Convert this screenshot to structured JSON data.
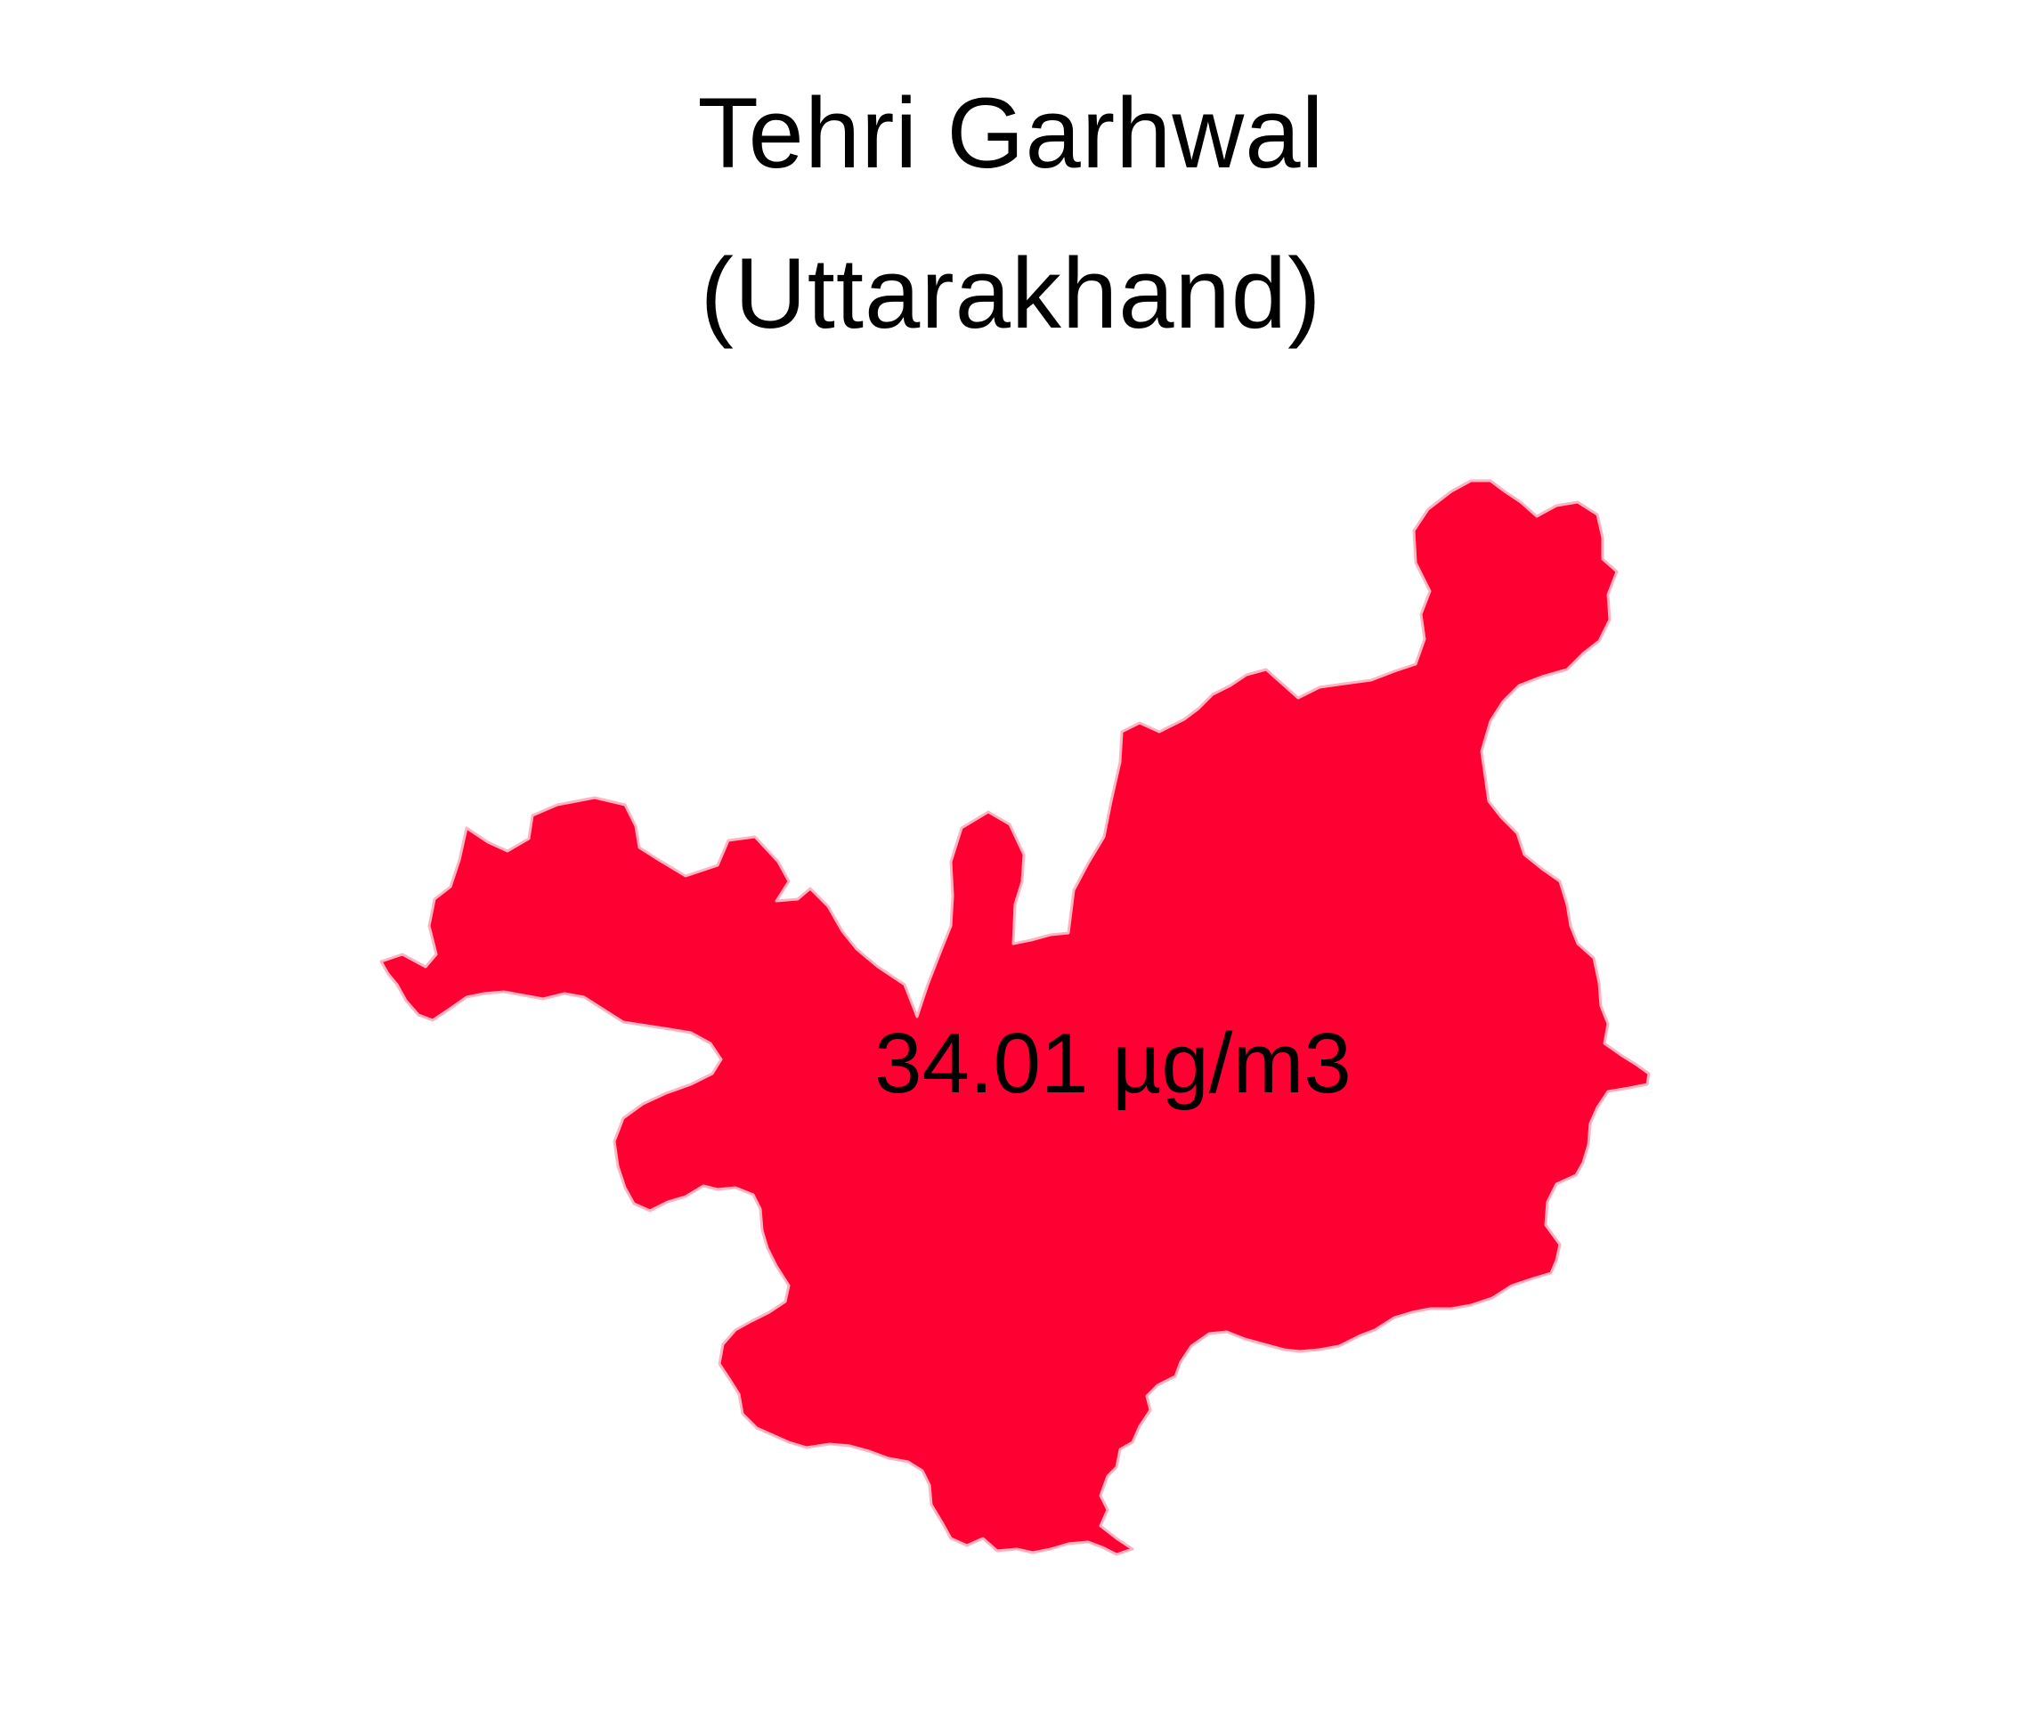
{
  "title": {
    "line1": "Tehri Garhwal",
    "line2": "(Uttarakhand)"
  },
  "region": {
    "value_label": "34.01 µg/m3",
    "fill_color": "#FF0033",
    "stroke_color": "#FFB3C1"
  }
}
